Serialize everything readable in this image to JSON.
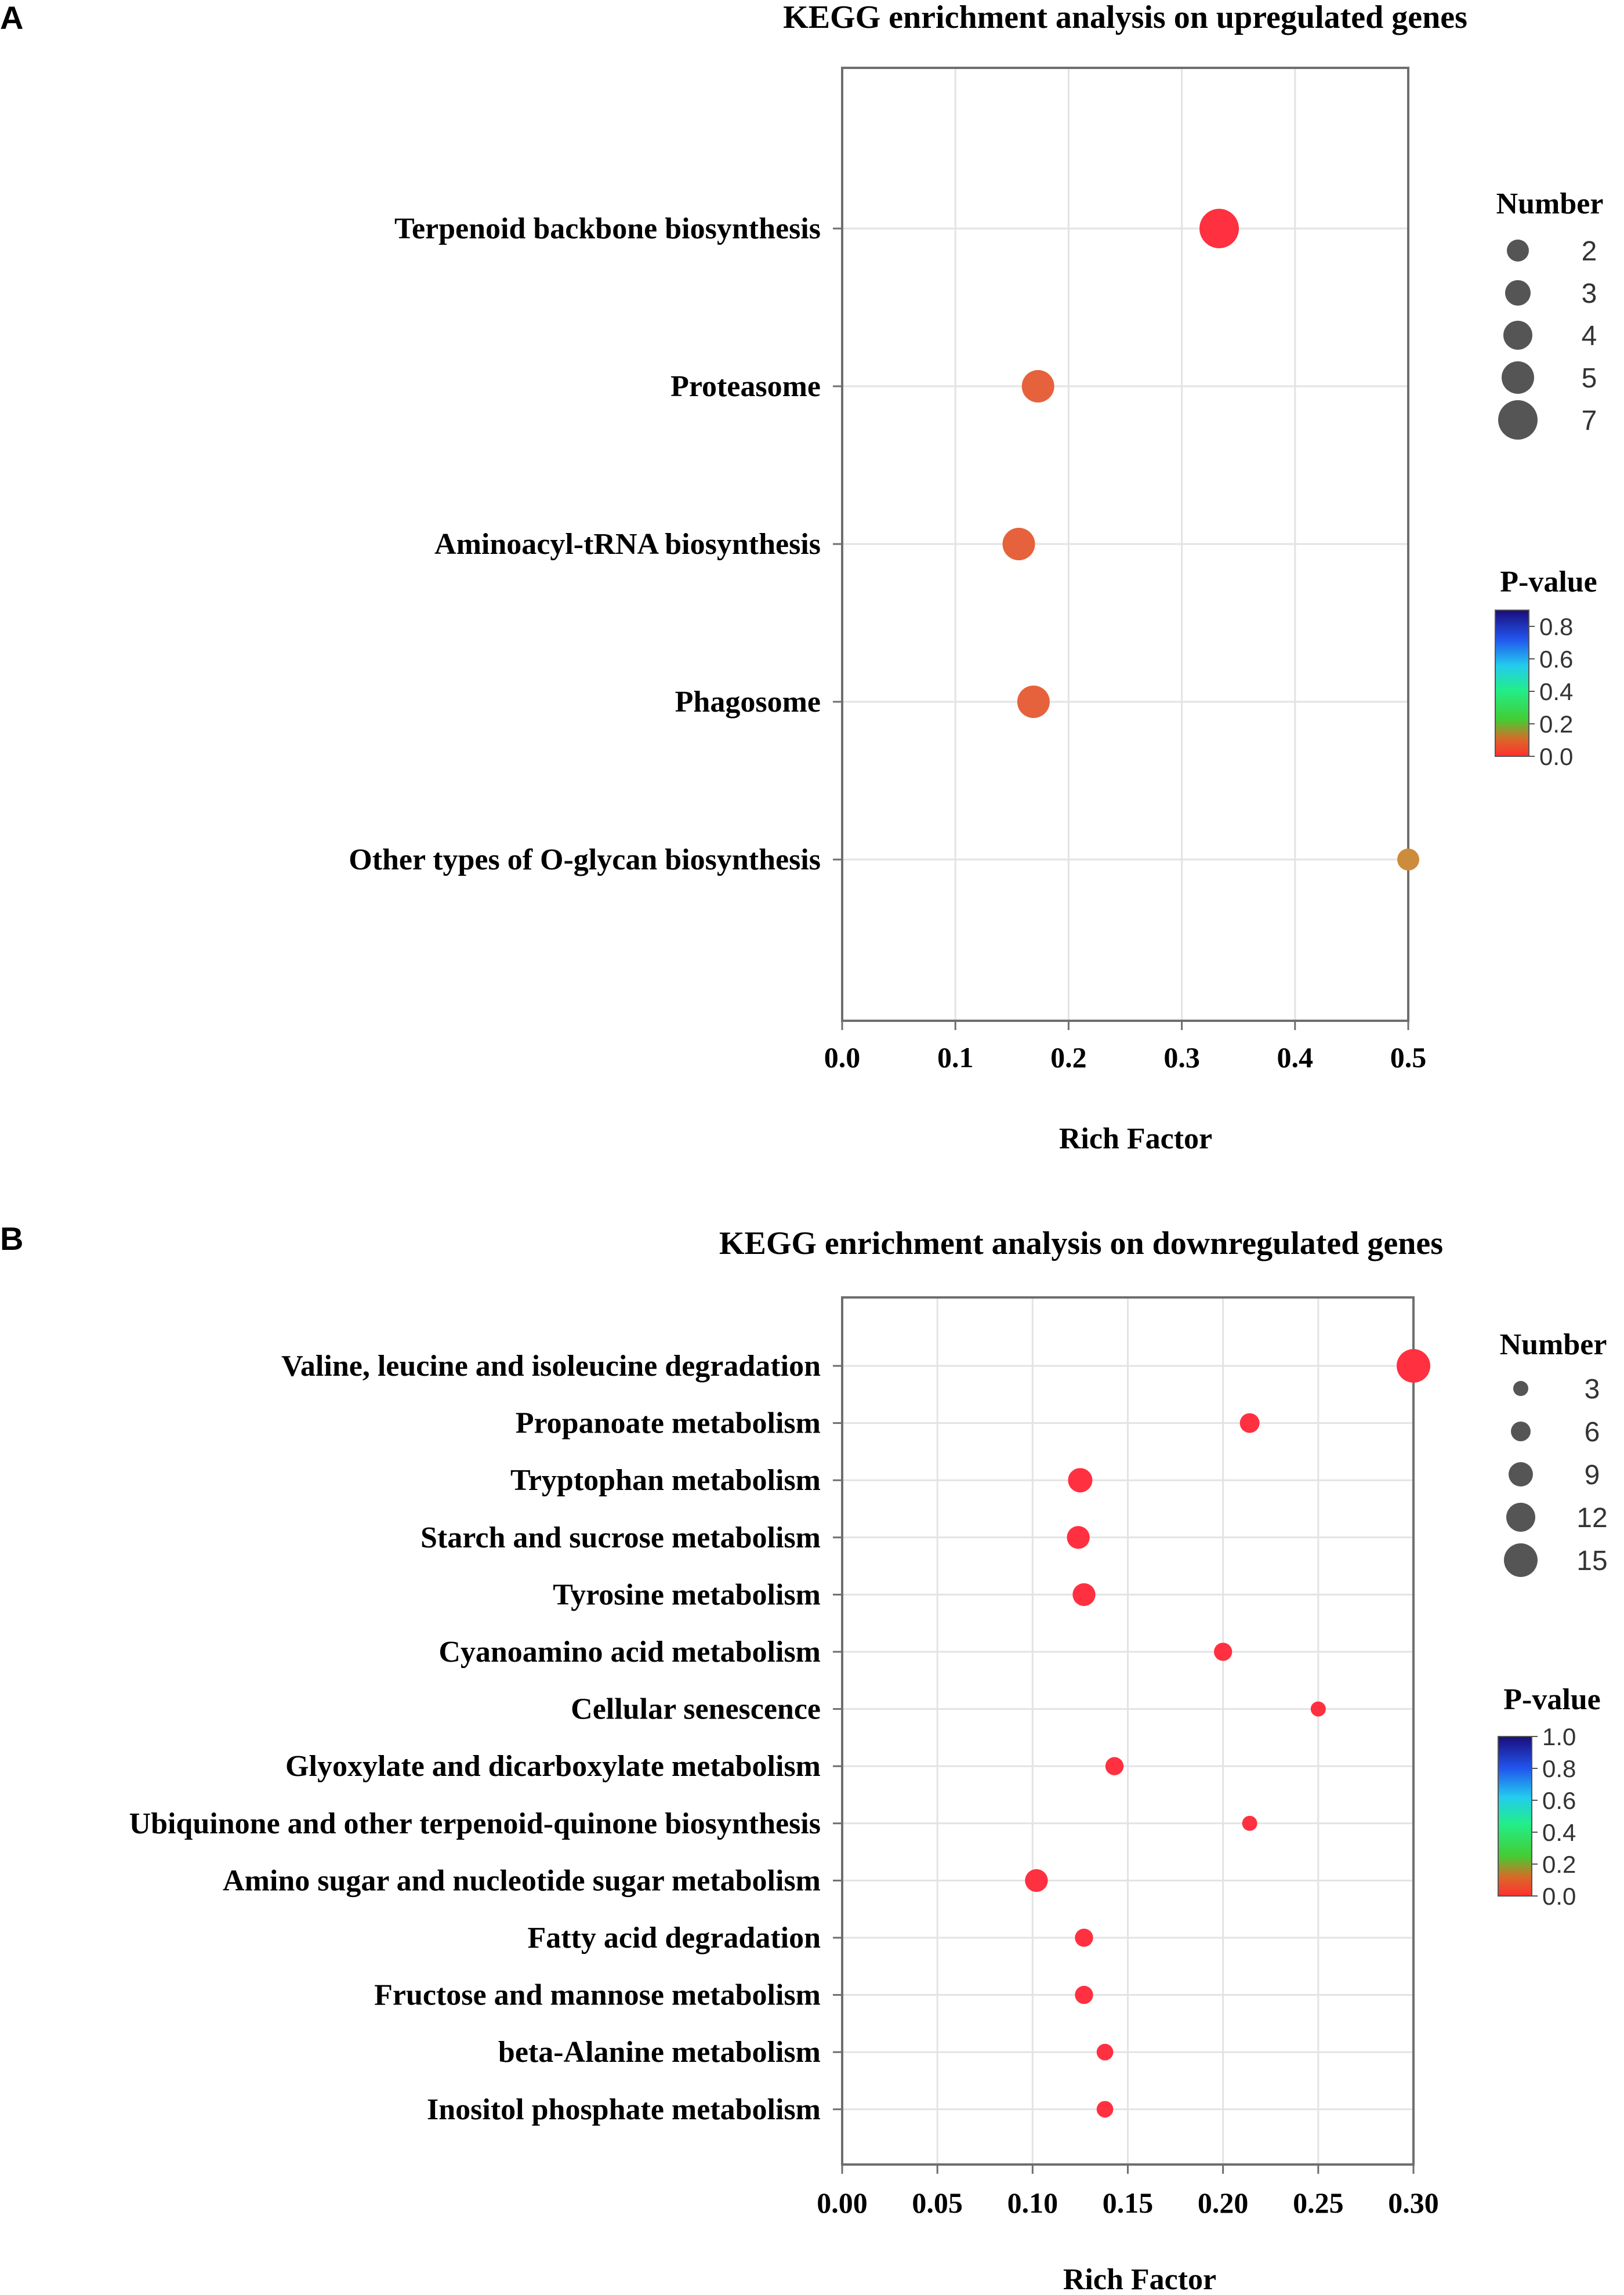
{
  "chart_data": [
    {
      "type": "scatter",
      "panel_label": "A",
      "title": "KEGG enrichment analysis on upregulated genes",
      "xlabel": "Rich Factor",
      "ylabel": "",
      "xlim": [
        0.0,
        0.5
      ],
      "xticks": [
        0.0,
        0.1,
        0.2,
        0.3,
        0.4,
        0.5
      ],
      "xtick_labels": [
        "0.0",
        "0.1",
        "0.2",
        "0.3",
        "0.4",
        "0.5"
      ],
      "grid": true,
      "categories": [
        "Terpenoid backbone biosynthesis",
        "Proteasome",
        "Aminoacyl-tRNA biosynthesis",
        "Phagosome",
        "Other types of O-glycan biosynthesis"
      ],
      "rich_factor": [
        0.333,
        0.173,
        0.156,
        0.169,
        0.5
      ],
      "gene_number": [
        7,
        5,
        5,
        5,
        2
      ],
      "p_value": [
        0.0,
        0.05,
        0.05,
        0.05,
        0.15
      ],
      "size_legend": {
        "title": "Number",
        "values": [
          2,
          3,
          4,
          5,
          7
        ],
        "labels": [
          "2",
          "3",
          "4",
          "5",
          "7"
        ]
      },
      "color_legend": {
        "title": "P-value",
        "range": [
          0.0,
          0.9
        ],
        "ticks": [
          "0.8",
          "0.6",
          "0.4",
          "0.2",
          "0.0"
        ]
      }
    },
    {
      "type": "scatter",
      "panel_label": "B",
      "title": "KEGG enrichment analysis on downregulated genes",
      "xlabel": "Rich Factor",
      "ylabel": "",
      "xlim": [
        0.0,
        0.3
      ],
      "xticks": [
        0.0,
        0.05,
        0.1,
        0.15,
        0.2,
        0.25,
        0.3
      ],
      "xtick_labels": [
        "0.00",
        "0.05",
        "0.10",
        "0.15",
        "0.20",
        "0.25",
        "0.30"
      ],
      "grid": true,
      "categories": [
        "Valine, leucine and isoleucine degradation",
        "Propanoate metabolism",
        "Tryptophan metabolism",
        "Starch and sucrose metabolism",
        "Tyrosine metabolism",
        "Cyanoamino acid metabolism",
        "Cellular senescence",
        "Glyoxylate and dicarboxylate metabolism",
        "Ubiquinone and other terpenoid-quinone biosynthesis",
        "Amino sugar and nucleotide sugar metabolism",
        "Fatty acid degradation",
        "Fructose and mannose metabolism",
        "beta-Alanine metabolism",
        "Inositol phosphate metabolism"
      ],
      "rich_factor": [
        0.3,
        0.214,
        0.125,
        0.124,
        0.127,
        0.2,
        0.25,
        0.143,
        0.214,
        0.102,
        0.127,
        0.127,
        0.138,
        0.138
      ],
      "gene_number": [
        15,
        6,
        9,
        8,
        8,
        5,
        3,
        5,
        3,
        8,
        5,
        5,
        4,
        4
      ],
      "p_value": [
        0.0,
        0.0,
        0.0,
        0.0,
        0.0,
        0.0,
        0.0,
        0.0,
        0.0,
        0.0,
        0.0,
        0.0,
        0.0,
        0.0
      ],
      "size_legend": {
        "title": "Number",
        "values": [
          3,
          6,
          9,
          12,
          15
        ],
        "labels": [
          "3",
          "6",
          "9",
          "12",
          "15"
        ]
      },
      "color_legend": {
        "title": "P-value",
        "range": [
          0.0,
          1.0
        ],
        "ticks": [
          "1.0",
          "0.8",
          "0.6",
          "0.4",
          "0.2",
          "0.0"
        ]
      }
    }
  ]
}
